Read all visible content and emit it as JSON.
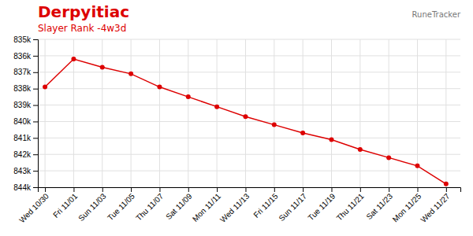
{
  "chart_data": {
    "type": "line",
    "title": "Derpyitiac",
    "subtitle": "Slayer Rank -4w3d",
    "annotations": [
      "RuneTracker"
    ],
    "x": [
      0,
      2,
      4,
      6,
      8,
      10,
      12,
      14,
      16,
      18,
      20,
      22,
      24,
      26,
      28
    ],
    "values": [
      837900,
      836200,
      836700,
      837100,
      837900,
      838500,
      839100,
      839700,
      840200,
      840700,
      841100,
      841700,
      842200,
      842700,
      843800
    ],
    "color": "#dd0000",
    "marker": "circle",
    "grid": true,
    "xlim": [
      -0.5,
      29
    ],
    "xticks": [
      {
        "value": 0,
        "label": "Wed 10/30"
      },
      {
        "value": 2,
        "label": "Fri 11/01"
      },
      {
        "value": 4,
        "label": "Sun 11/03"
      },
      {
        "value": 6,
        "label": "Tue 11/05"
      },
      {
        "value": 8,
        "label": "Thu 11/07"
      },
      {
        "value": 10,
        "label": "Sat 11/09"
      },
      {
        "value": 12,
        "label": "Mon 11/11"
      },
      {
        "value": 14,
        "label": "Wed 11/13"
      },
      {
        "value": 16,
        "label": "Fri 11/15"
      },
      {
        "value": 18,
        "label": "Sun 11/17"
      },
      {
        "value": 20,
        "label": "Tue 11/19"
      },
      {
        "value": 22,
        "label": "Thu 11/21"
      },
      {
        "value": 24,
        "label": "Sat 11/23"
      },
      {
        "value": 26,
        "label": "Mon 11/25"
      },
      {
        "value": 28,
        "label": "Wed 11/27"
      }
    ],
    "ylim": [
      844000,
      835000
    ],
    "yticks": [
      {
        "value": 835000,
        "label": "835k"
      },
      {
        "value": 836000,
        "label": "836k"
      },
      {
        "value": 837000,
        "label": "837k"
      },
      {
        "value": 838000,
        "label": "838k"
      },
      {
        "value": 839000,
        "label": "839k"
      },
      {
        "value": 840000,
        "label": "840k"
      },
      {
        "value": 841000,
        "label": "841k"
      },
      {
        "value": 842000,
        "label": "842k"
      },
      {
        "value": 843000,
        "label": "843k"
      },
      {
        "value": 844000,
        "label": "844k"
      }
    ]
  }
}
